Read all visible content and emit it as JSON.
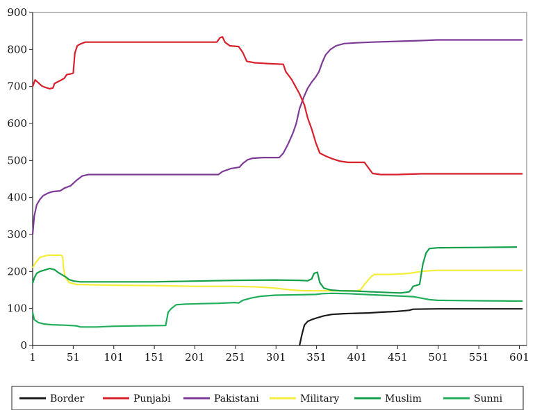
{
  "chart_data": {
    "type": "line",
    "title": "",
    "xlabel": "",
    "ylabel": "",
    "xlim": [
      1,
      610
    ],
    "ylim": [
      0,
      900
    ],
    "x_ticks": [
      1,
      51,
      101,
      151,
      201,
      251,
      301,
      351,
      401,
      451,
      501,
      551,
      601
    ],
    "y_ticks": [
      0,
      100,
      200,
      300,
      400,
      500,
      600,
      700,
      800,
      900
    ],
    "grid": false,
    "legend": "bottom",
    "series": [
      {
        "name": "Border",
        "color": "#1a1a1a",
        "points": [
          [
            330,
            0
          ],
          [
            333,
            30
          ],
          [
            336,
            55
          ],
          [
            340,
            65
          ],
          [
            345,
            70
          ],
          [
            352,
            75
          ],
          [
            360,
            80
          ],
          [
            370,
            84
          ],
          [
            385,
            86
          ],
          [
            400,
            87
          ],
          [
            415,
            88
          ],
          [
            430,
            90
          ],
          [
            450,
            92
          ],
          [
            465,
            95
          ],
          [
            470,
            98
          ],
          [
            500,
            99
          ],
          [
            550,
            99
          ],
          [
            605,
            99
          ]
        ]
      },
      {
        "name": "Punjabi",
        "color": "#d8202c",
        "points": [
          [
            1,
            700
          ],
          [
            4,
            718
          ],
          [
            8,
            710
          ],
          [
            12,
            702
          ],
          [
            16,
            698
          ],
          [
            22,
            694
          ],
          [
            26,
            696
          ],
          [
            28,
            708
          ],
          [
            35,
            716
          ],
          [
            40,
            722
          ],
          [
            43,
            732
          ],
          [
            48,
            734
          ],
          [
            51,
            736
          ],
          [
            53,
            790
          ],
          [
            56,
            810
          ],
          [
            60,
            815
          ],
          [
            66,
            820
          ],
          [
            80,
            820
          ],
          [
            120,
            820
          ],
          [
            200,
            820
          ],
          [
            228,
            820
          ],
          [
            232,
            832
          ],
          [
            235,
            834
          ],
          [
            238,
            820
          ],
          [
            244,
            810
          ],
          [
            255,
            808
          ],
          [
            260,
            792
          ],
          [
            265,
            768
          ],
          [
            275,
            764
          ],
          [
            290,
            762
          ],
          [
            310,
            760
          ],
          [
            313,
            740
          ],
          [
            320,
            720
          ],
          [
            325,
            700
          ],
          [
            330,
            680
          ],
          [
            336,
            650
          ],
          [
            340,
            615
          ],
          [
            345,
            585
          ],
          [
            350,
            548
          ],
          [
            355,
            520
          ],
          [
            362,
            512
          ],
          [
            370,
            505
          ],
          [
            380,
            498
          ],
          [
            390,
            495
          ],
          [
            400,
            495
          ],
          [
            410,
            495
          ],
          [
            415,
            480
          ],
          [
            420,
            465
          ],
          [
            430,
            462
          ],
          [
            450,
            462
          ],
          [
            480,
            464
          ],
          [
            550,
            464
          ],
          [
            605,
            464
          ]
        ]
      },
      {
        "name": "Pakistani",
        "color": "#7d3a96",
        "points": [
          [
            1,
            300
          ],
          [
            3,
            350
          ],
          [
            6,
            380
          ],
          [
            10,
            395
          ],
          [
            14,
            405
          ],
          [
            20,
            412
          ],
          [
            26,
            416
          ],
          [
            35,
            418
          ],
          [
            40,
            425
          ],
          [
            48,
            432
          ],
          [
            52,
            440
          ],
          [
            56,
            448
          ],
          [
            62,
            458
          ],
          [
            70,
            462
          ],
          [
            100,
            462
          ],
          [
            150,
            462
          ],
          [
            200,
            462
          ],
          [
            230,
            462
          ],
          [
            235,
            470
          ],
          [
            245,
            478
          ],
          [
            256,
            482
          ],
          [
            260,
            492
          ],
          [
            266,
            502
          ],
          [
            272,
            506
          ],
          [
            285,
            508
          ],
          [
            305,
            508
          ],
          [
            310,
            520
          ],
          [
            316,
            545
          ],
          [
            322,
            575
          ],
          [
            326,
            600
          ],
          [
            330,
            640
          ],
          [
            335,
            670
          ],
          [
            340,
            695
          ],
          [
            345,
            712
          ],
          [
            350,
            726
          ],
          [
            354,
            740
          ],
          [
            358,
            765
          ],
          [
            362,
            785
          ],
          [
            368,
            800
          ],
          [
            375,
            810
          ],
          [
            385,
            816
          ],
          [
            400,
            818
          ],
          [
            420,
            820
          ],
          [
            450,
            822
          ],
          [
            480,
            824
          ],
          [
            500,
            826
          ],
          [
            550,
            826
          ],
          [
            605,
            826
          ]
        ]
      },
      {
        "name": "Military",
        "color": "#f4ee3a",
        "points": [
          [
            1,
            210
          ],
          [
            5,
            225
          ],
          [
            10,
            238
          ],
          [
            16,
            242
          ],
          [
            20,
            244
          ],
          [
            26,
            244
          ],
          [
            36,
            244
          ],
          [
            38,
            240
          ],
          [
            39,
            210
          ],
          [
            41,
            185
          ],
          [
            46,
            170
          ],
          [
            55,
            165
          ],
          [
            100,
            163
          ],
          [
            150,
            162
          ],
          [
            200,
            160
          ],
          [
            250,
            160
          ],
          [
            280,
            158
          ],
          [
            300,
            155
          ],
          [
            320,
            150
          ],
          [
            335,
            148
          ],
          [
            350,
            148
          ],
          [
            380,
            148
          ],
          [
            400,
            148
          ],
          [
            405,
            150
          ],
          [
            410,
            165
          ],
          [
            418,
            185
          ],
          [
            422,
            192
          ],
          [
            440,
            192
          ],
          [
            460,
            194
          ],
          [
            468,
            196
          ],
          [
            480,
            200
          ],
          [
            490,
            202
          ],
          [
            500,
            203
          ],
          [
            550,
            203
          ],
          [
            605,
            203
          ]
        ]
      },
      {
        "name": "Muslim",
        "color": "#12a04a",
        "points": [
          [
            1,
            168
          ],
          [
            3,
            182
          ],
          [
            6,
            195
          ],
          [
            10,
            200
          ],
          [
            16,
            204
          ],
          [
            22,
            208
          ],
          [
            28,
            205
          ],
          [
            32,
            198
          ],
          [
            38,
            190
          ],
          [
            42,
            185
          ],
          [
            46,
            178
          ],
          [
            52,
            174
          ],
          [
            60,
            172
          ],
          [
            100,
            172
          ],
          [
            150,
            172
          ],
          [
            200,
            174
          ],
          [
            250,
            176
          ],
          [
            300,
            177
          ],
          [
            330,
            176
          ],
          [
            340,
            175
          ],
          [
            345,
            180
          ],
          [
            348,
            195
          ],
          [
            352,
            198
          ],
          [
            355,
            170
          ],
          [
            360,
            155
          ],
          [
            368,
            150
          ],
          [
            380,
            148
          ],
          [
            400,
            147
          ],
          [
            420,
            145
          ],
          [
            440,
            143
          ],
          [
            455,
            142
          ],
          [
            465,
            145
          ],
          [
            468,
            152
          ],
          [
            470,
            160
          ],
          [
            478,
            165
          ],
          [
            482,
            220
          ],
          [
            486,
            250
          ],
          [
            490,
            262
          ],
          [
            500,
            264
          ],
          [
            550,
            265
          ],
          [
            598,
            266
          ]
        ]
      },
      {
        "name": "Sunni",
        "color": "#1fae5a",
        "points": [
          [
            1,
            90
          ],
          [
            3,
            70
          ],
          [
            8,
            62
          ],
          [
            15,
            58
          ],
          [
            25,
            56
          ],
          [
            40,
            55
          ],
          [
            55,
            53
          ],
          [
            60,
            50
          ],
          [
            80,
            50
          ],
          [
            100,
            52
          ],
          [
            130,
            53
          ],
          [
            165,
            54
          ],
          [
            168,
            90
          ],
          [
            172,
            100
          ],
          [
            178,
            110
          ],
          [
            190,
            112
          ],
          [
            210,
            113
          ],
          [
            230,
            114
          ],
          [
            250,
            116
          ],
          [
            255,
            115
          ],
          [
            260,
            122
          ],
          [
            270,
            128
          ],
          [
            282,
            133
          ],
          [
            300,
            136
          ],
          [
            330,
            137
          ],
          [
            350,
            138
          ],
          [
            358,
            140
          ],
          [
            370,
            141
          ],
          [
            390,
            140
          ],
          [
            410,
            138
          ],
          [
            430,
            136
          ],
          [
            450,
            134
          ],
          [
            470,
            132
          ],
          [
            480,
            128
          ],
          [
            490,
            124
          ],
          [
            500,
            122
          ],
          [
            550,
            121
          ],
          [
            605,
            120
          ]
        ]
      }
    ]
  }
}
